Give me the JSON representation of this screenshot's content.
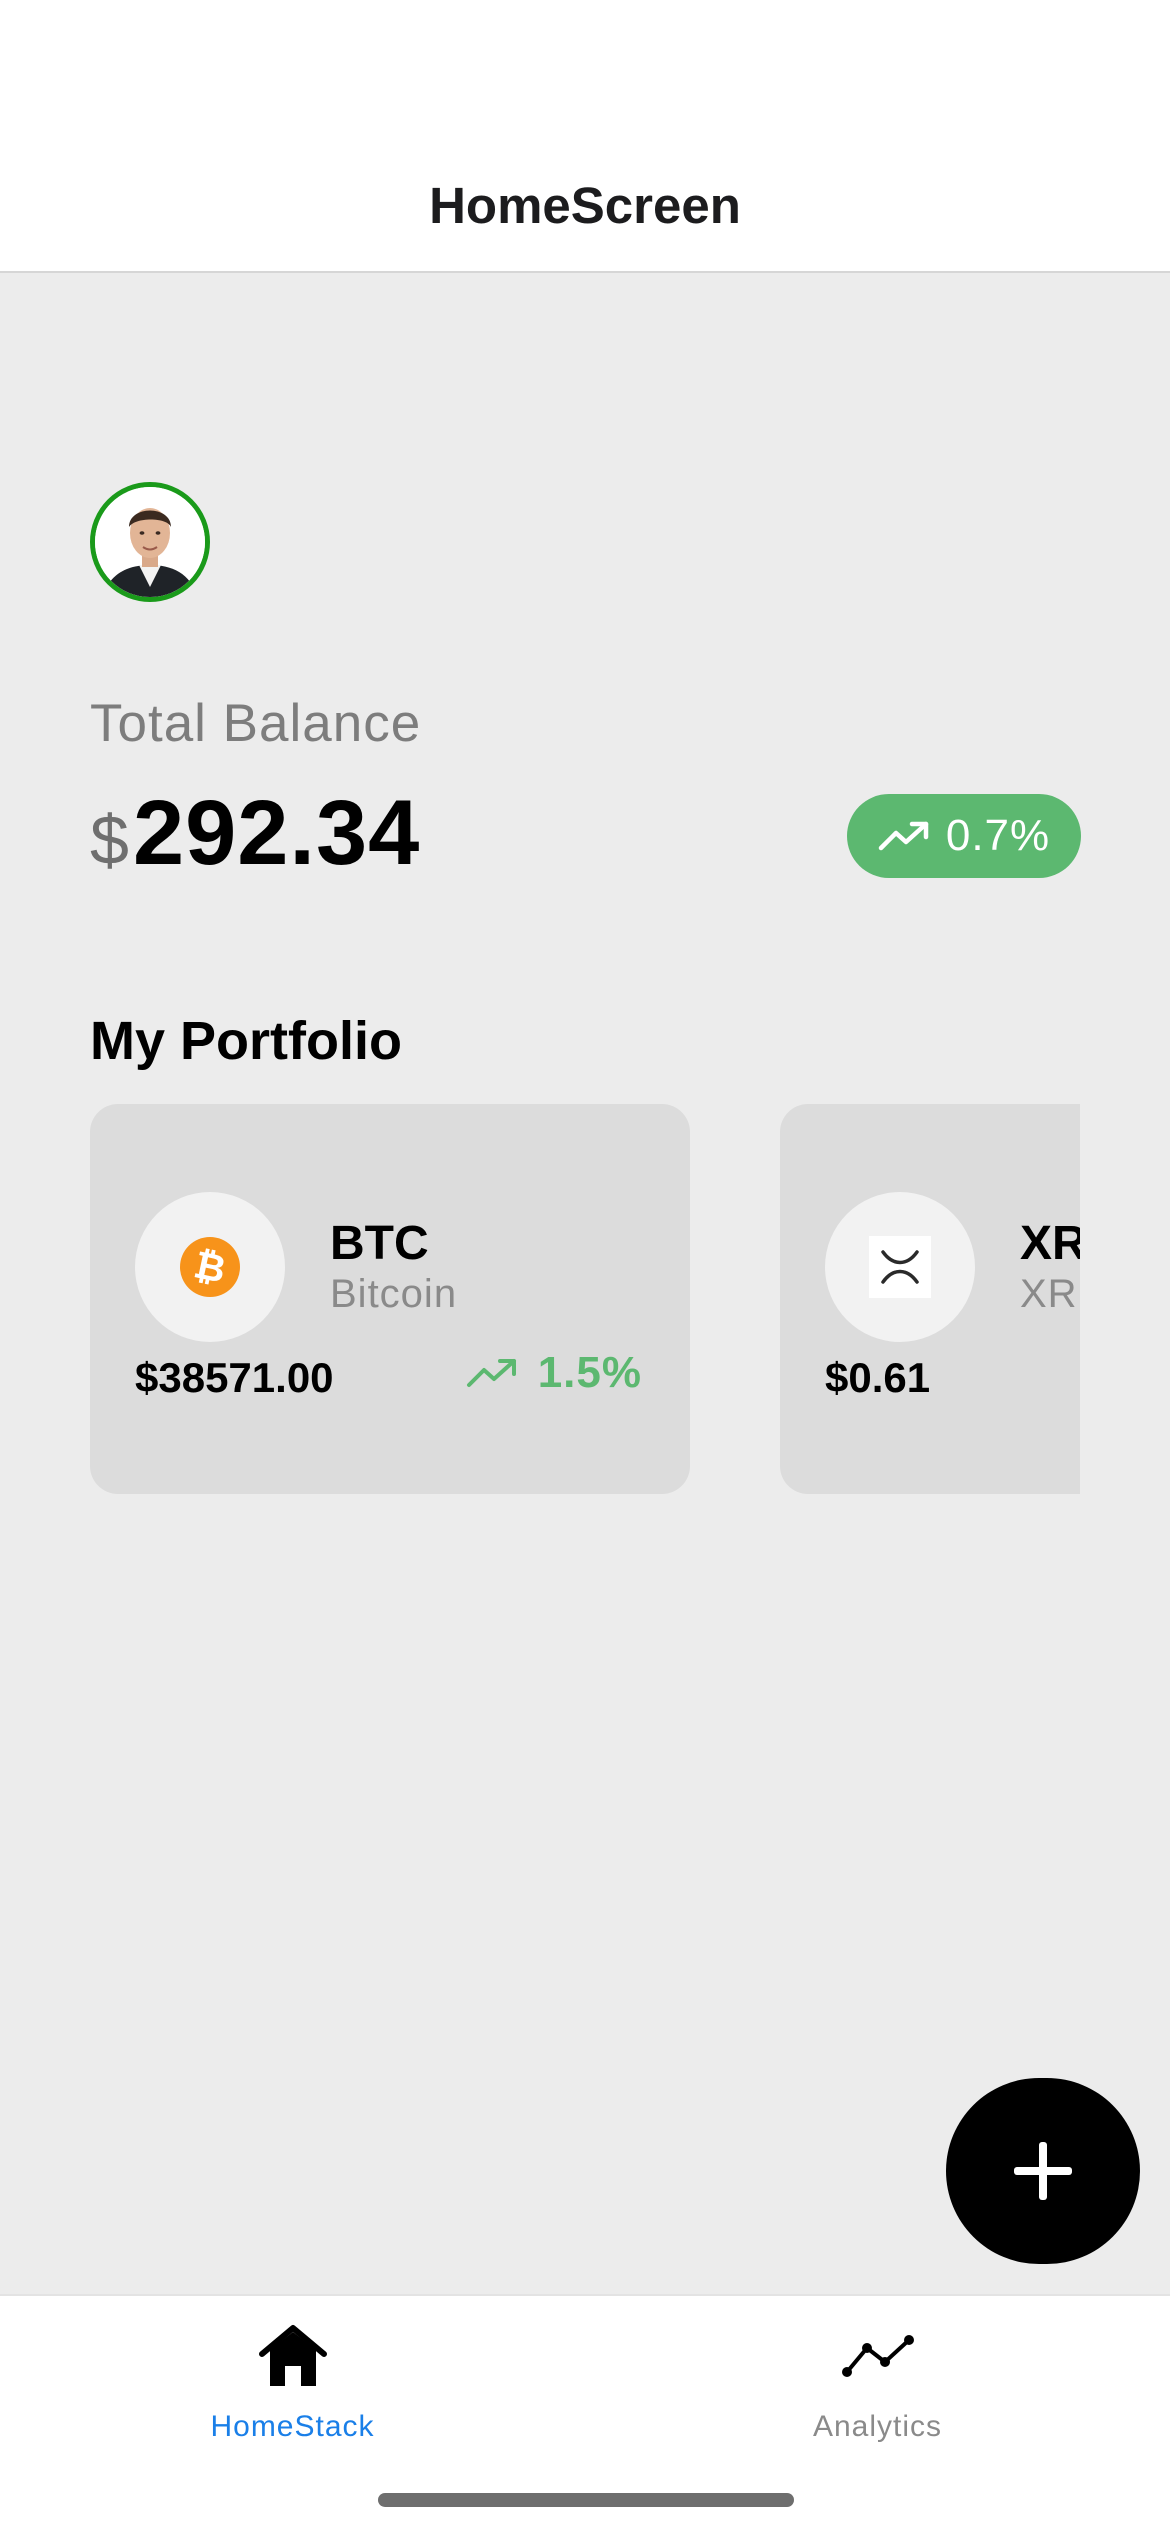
{
  "header": {
    "title": "HomeScreen"
  },
  "profile": {
    "avatar_icon": "user-avatar-photo",
    "ring_color": "#1a9a1a"
  },
  "balance": {
    "label": "Total Balance",
    "currency": "$",
    "amount": "292.34",
    "change": "0.7%",
    "change_icon": "trending-up-icon",
    "change_color": "#5cb870"
  },
  "portfolio": {
    "title": "My Portfolio",
    "coins": [
      {
        "symbol": "BTC",
        "name": "Bitcoin",
        "price": "$38571.00",
        "change": "1.5%",
        "logo_icon": "bitcoin-icon",
        "logo_color": "#f7931a"
      },
      {
        "symbol": "XRP",
        "name": "XRP",
        "price": "$0.61",
        "change": "",
        "logo_icon": "xrp-icon"
      }
    ]
  },
  "fab": {
    "icon": "plus-icon"
  },
  "tabbar": {
    "tabs": [
      {
        "label": "HomeStack",
        "icon": "home-icon",
        "active": true,
        "color": "#1a7fe8"
      },
      {
        "label": "Analytics",
        "icon": "analytics-icon",
        "active": false,
        "color": "#8a8a8a"
      }
    ]
  }
}
